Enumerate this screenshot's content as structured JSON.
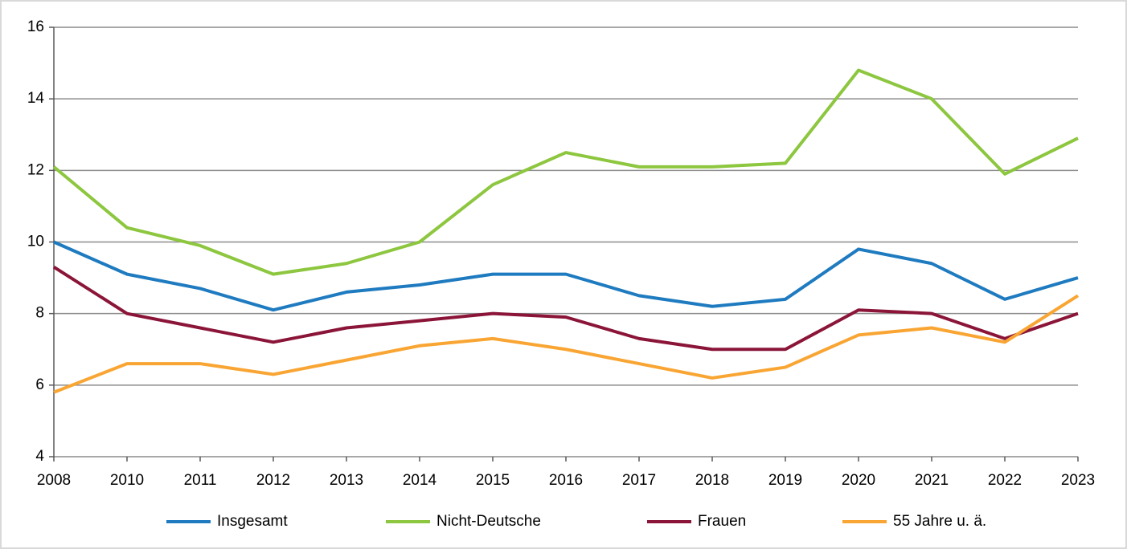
{
  "chart_data": {
    "type": "line",
    "categories": [
      "2008",
      "2010",
      "2011",
      "2012",
      "2013",
      "2014",
      "2015",
      "2016",
      "2017",
      "2018",
      "2019",
      "2020",
      "2021",
      "2022",
      "2023"
    ],
    "series": [
      {
        "name": "Insgesamt",
        "color": "#1f7bc0",
        "values": [
          10.0,
          9.1,
          8.7,
          8.1,
          8.6,
          8.8,
          9.1,
          9.1,
          8.5,
          8.2,
          8.4,
          9.8,
          9.4,
          8.4,
          9.0
        ]
      },
      {
        "name": "Nicht-Deutsche",
        "color": "#8dc63f",
        "values": [
          12.1,
          10.4,
          9.9,
          9.1,
          9.4,
          10.0,
          11.6,
          12.5,
          12.1,
          12.1,
          12.2,
          14.8,
          14.0,
          11.9,
          12.9
        ]
      },
      {
        "name": "Frauen",
        "color": "#8b1538",
        "values": [
          9.3,
          8.0,
          7.6,
          7.2,
          7.6,
          7.8,
          8.0,
          7.9,
          7.3,
          7.0,
          7.0,
          8.1,
          8.0,
          7.3,
          8.0
        ]
      },
      {
        "name": "55 Jahre u. ä.",
        "color": "#f9a533",
        "values": [
          5.8,
          6.6,
          6.6,
          6.3,
          6.7,
          7.1,
          7.3,
          7.0,
          6.6,
          6.2,
          6.5,
          7.4,
          7.6,
          7.2,
          8.5
        ]
      }
    ],
    "ylim": [
      4,
      16
    ],
    "yticks": [
      4,
      6,
      8,
      10,
      12,
      14,
      16
    ],
    "grid": true,
    "legend": "bottom"
  }
}
